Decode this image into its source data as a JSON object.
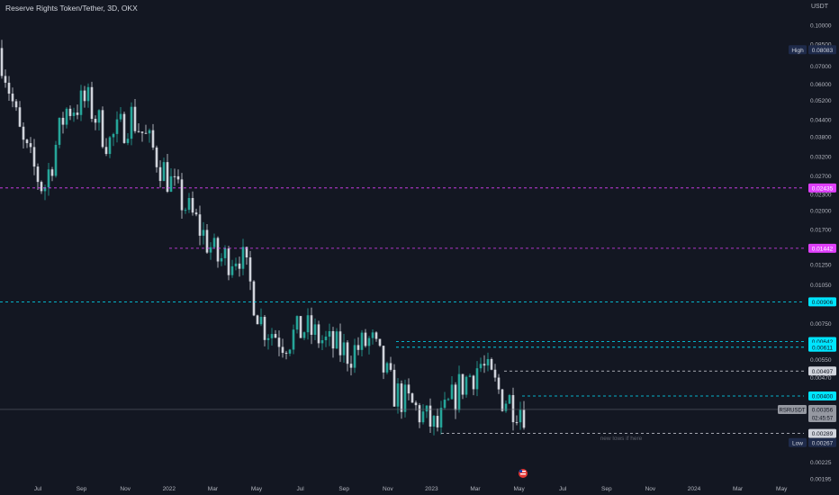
{
  "header": {
    "title": "Reserve Rights Token/Tether, 3D, OKX",
    "unit": "USDT"
  },
  "colors": {
    "bg": "#131722",
    "up": "#26a69a",
    "down": "#d1d4dc",
    "axis_text": "#b2b5be",
    "cyan": "#00e5ff",
    "magenta": "#e040fb",
    "white_line": "#d1d4dc"
  },
  "chart_data": {
    "type": "candlestick",
    "price_scale": "log",
    "y_ticks": [
      "0.10000",
      "0.08500",
      "0.07000",
      "0.06000",
      "0.05200",
      "0.04400",
      "0.03800",
      "0.03200",
      "0.02700",
      "0.02300",
      "0.02000",
      "0.01700",
      "0.01250",
      "0.01050",
      "0.00750",
      "0.00550",
      "0.00470",
      "0.00225",
      "0.00195"
    ],
    "x_ticks": [
      "Jul",
      "Sep",
      "Nov",
      "2022",
      "Mar",
      "May",
      "Jul",
      "Sep",
      "Nov",
      "2023",
      "Mar",
      "May",
      "Jul",
      "Sep",
      "Nov",
      "2024",
      "Mar",
      "May"
    ],
    "high": {
      "label": "High",
      "value": "0.08083"
    },
    "low": {
      "label": "Low",
      "value": "0.00267"
    },
    "last_price": {
      "symbol": "RSRUSDT",
      "value": "0.00356",
      "countdown": "02:45:57"
    },
    "levels": [
      {
        "value": "0.02435",
        "color": "magenta"
      },
      {
        "value": "0.01442",
        "color": "magenta"
      },
      {
        "value": "0.00906",
        "color": "cyan"
      },
      {
        "value": "0.00642",
        "color": "cyan"
      },
      {
        "value": "0.00611",
        "color": "cyan"
      },
      {
        "value": "0.00497",
        "color": "white"
      },
      {
        "value": "0.00400",
        "color": "cyan"
      },
      {
        "value": "0.00289",
        "color": "white"
      }
    ],
    "annotation": "new lows if here",
    "series": [
      {
        "period": "2021-May",
        "value": 0.082
      },
      {
        "period": "2021-Jun",
        "value": 0.036
      },
      {
        "period": "2021-Jul",
        "value": 0.024
      },
      {
        "period": "2021-Aug",
        "value": 0.048
      },
      {
        "period": "2021-Sep",
        "value": 0.052
      },
      {
        "period": "2021-Oct",
        "value": 0.036
      },
      {
        "period": "2021-Nov",
        "value": 0.046
      },
      {
        "period": "2021-Dec",
        "value": 0.034
      },
      {
        "period": "2022-Jan",
        "value": 0.024
      },
      {
        "period": "2022-Feb",
        "value": 0.018
      },
      {
        "period": "2022-Mar",
        "value": 0.013
      },
      {
        "period": "2022-Apr",
        "value": 0.014
      },
      {
        "period": "2022-May",
        "value": 0.0075
      },
      {
        "period": "2022-Jun",
        "value": 0.0065
      },
      {
        "period": "2022-Jul",
        "value": 0.0072
      },
      {
        "period": "2022-Aug",
        "value": 0.0063
      },
      {
        "period": "2022-Sep",
        "value": 0.0058
      },
      {
        "period": "2022-Oct",
        "value": 0.0065
      },
      {
        "period": "2022-Nov",
        "value": 0.0042
      },
      {
        "period": "2022-Dec",
        "value": 0.0036
      },
      {
        "period": "2023-Jan",
        "value": 0.003
      },
      {
        "period": "2023-Feb",
        "value": 0.0043
      },
      {
        "period": "2023-Mar",
        "value": 0.0053
      },
      {
        "period": "2023-Apr",
        "value": 0.004
      },
      {
        "period": "2023-May",
        "value": 0.0036
      }
    ]
  }
}
